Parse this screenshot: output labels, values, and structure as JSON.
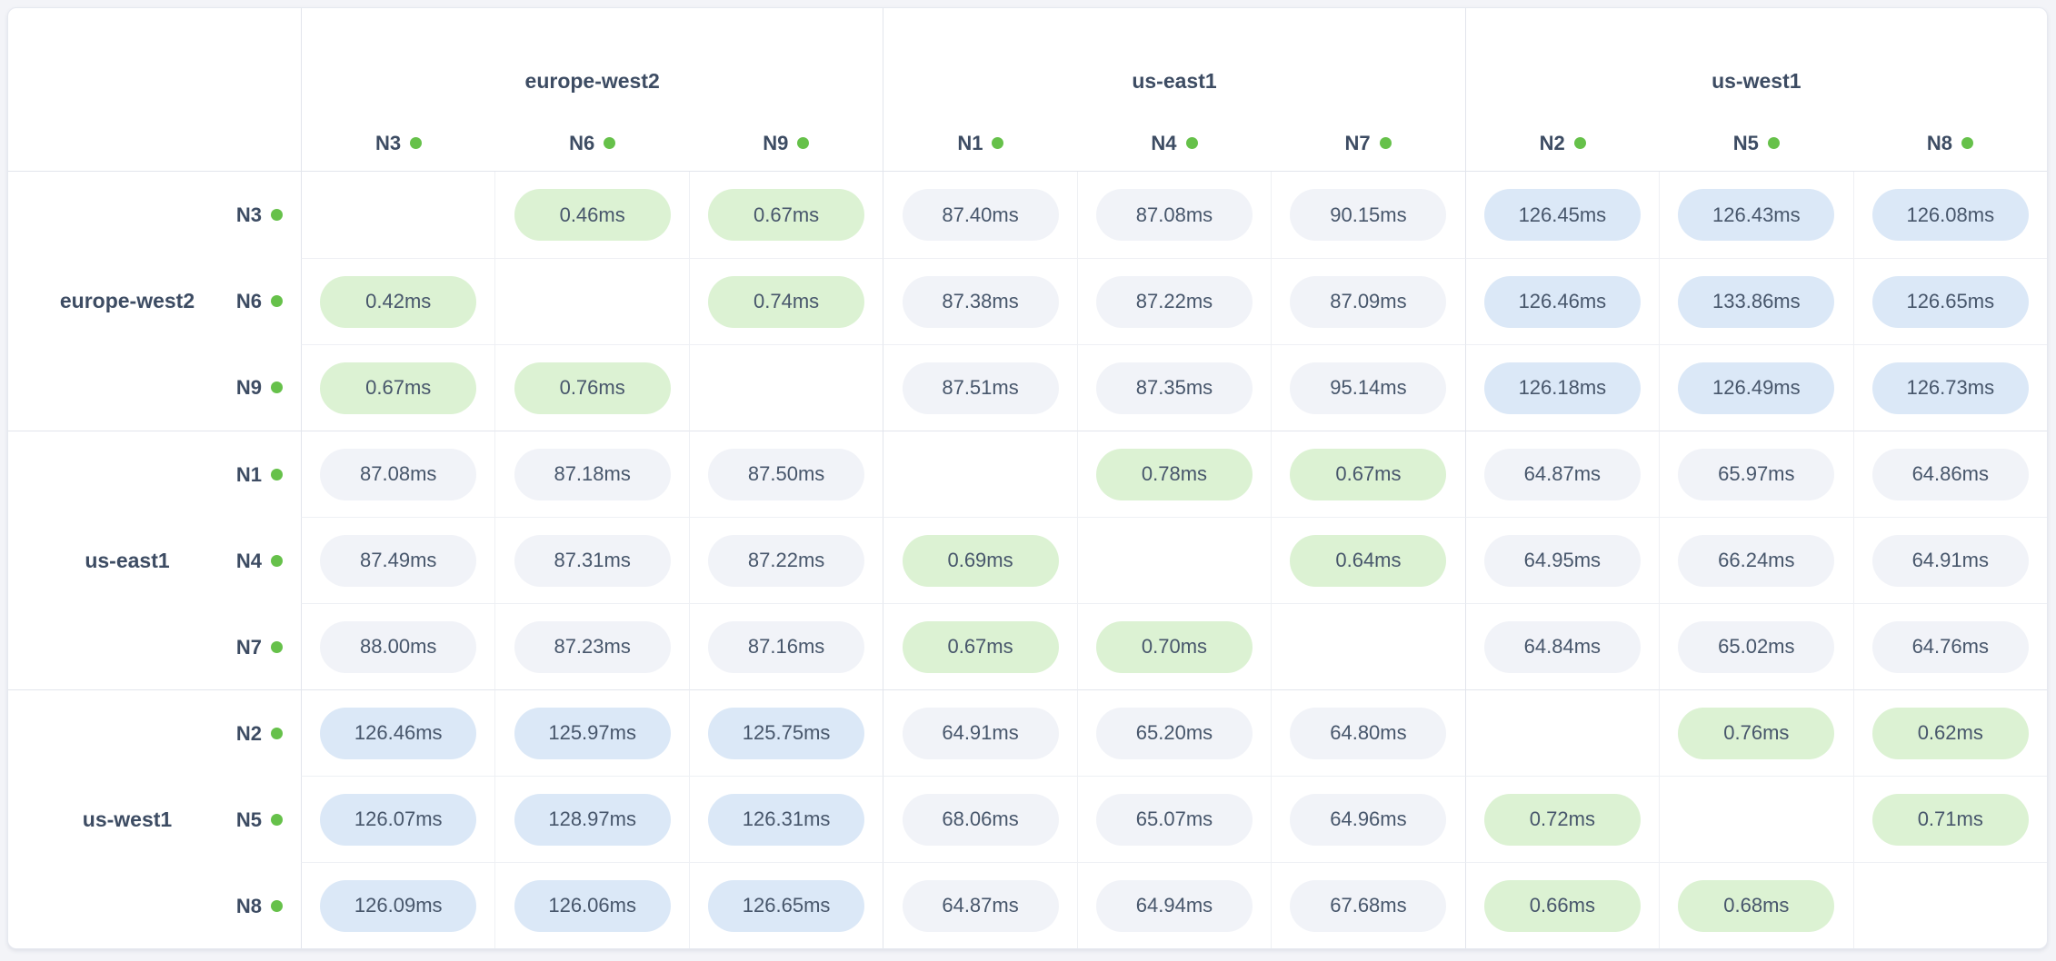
{
  "table": {
    "unit": "ms",
    "regions": [
      {
        "name": "europe-west2",
        "nodes": [
          "N3",
          "N6",
          "N9"
        ]
      },
      {
        "name": "us-east1",
        "nodes": [
          "N1",
          "N4",
          "N7"
        ]
      },
      {
        "name": "us-west1",
        "nodes": [
          "N2",
          "N5",
          "N8"
        ]
      }
    ],
    "node_order": [
      "N3",
      "N6",
      "N9",
      "N1",
      "N4",
      "N7",
      "N2",
      "N5",
      "N8"
    ],
    "latency_ms": {
      "N3": [
        null,
        0.46,
        0.67,
        87.4,
        87.08,
        90.15,
        126.45,
        126.43,
        126.08
      ],
      "N6": [
        0.42,
        null,
        0.74,
        87.38,
        87.22,
        87.09,
        126.46,
        133.86,
        126.65
      ],
      "N9": [
        0.67,
        0.76,
        null,
        87.51,
        87.35,
        95.14,
        126.18,
        126.49,
        126.73
      ],
      "N1": [
        87.08,
        87.18,
        87.5,
        null,
        0.78,
        0.67,
        64.87,
        65.97,
        64.86
      ],
      "N4": [
        87.49,
        87.31,
        87.22,
        0.69,
        null,
        0.64,
        64.95,
        66.24,
        64.91
      ],
      "N7": [
        88.0,
        87.23,
        87.16,
        0.67,
        0.7,
        null,
        64.84,
        65.02,
        64.76
      ],
      "N2": [
        126.46,
        125.97,
        125.75,
        64.91,
        65.2,
        64.8,
        null,
        0.76,
        0.62
      ],
      "N5": [
        126.07,
        128.97,
        126.31,
        68.06,
        65.07,
        64.96,
        0.72,
        null,
        0.71
      ],
      "N8": [
        126.09,
        126.06,
        126.65,
        64.87,
        64.94,
        67.68,
        0.66,
        0.68,
        null
      ]
    },
    "tier_thresholds": {
      "low_below_ms": 1,
      "high_at_or_above_ms": 100
    }
  },
  "colors": {
    "page_bg": "#f3f4f8",
    "card_bg": "#ffffff",
    "pill_low_bg": "#dcf2d3",
    "pill_mid_bg": "#f1f3f8",
    "pill_high_bg": "#dbe8f7",
    "node_status_dot": "#66c14a",
    "value_text": "#47566b",
    "label_text": "#3d4c63"
  }
}
